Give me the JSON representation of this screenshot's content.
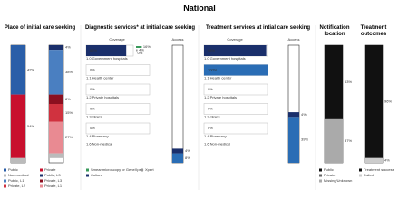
{
  "title": "National",
  "place": {
    "title": "Place of initial care seeking",
    "bars": [
      {
        "segments": [
          {
            "name": "Public",
            "color": "#2a5ea8",
            "value": 42,
            "label": "42%"
          },
          {
            "name": "Private",
            "color": "#c8102e",
            "value": 54,
            "label": "54%"
          },
          {
            "name": "Non-medical",
            "color": "#bbbbbb",
            "value": 4
          }
        ]
      },
      {
        "segments": [
          {
            "name": "Public, L3",
            "color": "#1a2f6b",
            "value": 4,
            "label": "4%"
          },
          {
            "name": "Public, L1",
            "color": "#4a7fc1",
            "value": 38,
            "label": "38%"
          },
          {
            "name": "Private, L3",
            "color": "#8b0f1f",
            "value": 8,
            "label": "8%"
          },
          {
            "name": "Private, L2",
            "color": "#d0323f",
            "value": 15,
            "label": "15%"
          },
          {
            "name": "Private, L1",
            "color": "#e98a92",
            "value": 27,
            "label": "27%"
          },
          {
            "color": "#bbbbbb",
            "value": 4
          }
        ]
      }
    ]
  },
  "diagnostic": {
    "title": "Diagnostic services* at initial care seeking",
    "coverage_label": "Coverage",
    "access_label": "Access",
    "rows": [
      {
        "label": "1.0 Government hospitals",
        "value": 85,
        "value_label": "85%",
        "color": "#1a2f6b"
      },
      {
        "label": "1.1 Health center",
        "value": 0,
        "value_label": "0%"
      },
      {
        "label": "1.2 Private hospitals",
        "value": 0,
        "value_label": "0%"
      },
      {
        "label": "1.3 clinics",
        "value": 0,
        "value_label": "0%"
      },
      {
        "label": "1.4 Pharmacy",
        "value": 0,
        "value_label": "0%"
      },
      {
        "label": "1.6 Non-medical"
      }
    ],
    "tests": [
      {
        "name": "Smear microscopy or GeneXpert",
        "color": "#3a9a5b",
        "value": 16,
        "label": "16%"
      },
      {
        "name": "Xpert",
        "color": "#999999",
        "value": 4,
        "label": "4%"
      },
      {
        "name": "Culture",
        "color": "#1a2f6b",
        "value": 0,
        "label": "0%"
      }
    ],
    "access": [
      {
        "value": 8,
        "label": "8%",
        "color": "#2a6db5"
      },
      {
        "value": 4,
        "label": "4%",
        "color": "#1a2f6b"
      }
    ]
  },
  "treatment": {
    "title": "Treatment services at intial care seeking",
    "coverage_label": "Coverage",
    "access_label": "Access",
    "rows": [
      {
        "label": "1.0 Government hospitals",
        "value": 98,
        "value_label": "98%",
        "color": "#1a2f6b"
      },
      {
        "label": "1.1 Health center",
        "value": 100,
        "value_label": "100%",
        "color": "#2a6db5"
      },
      {
        "label": "1.2 Private hospitals",
        "value": 0,
        "value_label": "0%"
      },
      {
        "label": "1.3 clinics",
        "value": 0,
        "value_label": "0%"
      },
      {
        "label": "1.4 Pharmacy",
        "value": 0,
        "value_label": "0%"
      },
      {
        "label": "1.6 Non-medical"
      }
    ],
    "access": [
      {
        "value": 39,
        "label": "39%",
        "color": "#2a6db5"
      },
      {
        "value": 4,
        "label": "4%",
        "color": "#1a2f6b"
      }
    ]
  },
  "notification": {
    "title": "Notification location",
    "segments": [
      {
        "name": "Public",
        "color": "#111111",
        "value": 63,
        "label": "63%"
      },
      {
        "name": "Private",
        "color": "#666666",
        "value": 0
      },
      {
        "name": "Missing/Unknown",
        "color": "#aaaaaa",
        "value": 37,
        "label": "37%"
      }
    ]
  },
  "outcomes": {
    "title": "Treatment outcomes",
    "segments": [
      {
        "name": "Treatment success",
        "color": "#111111",
        "value": 96,
        "label": "96%"
      },
      {
        "name": "Failed",
        "color": "#cccccc",
        "value": 4,
        "label": "4%"
      }
    ]
  }
}
